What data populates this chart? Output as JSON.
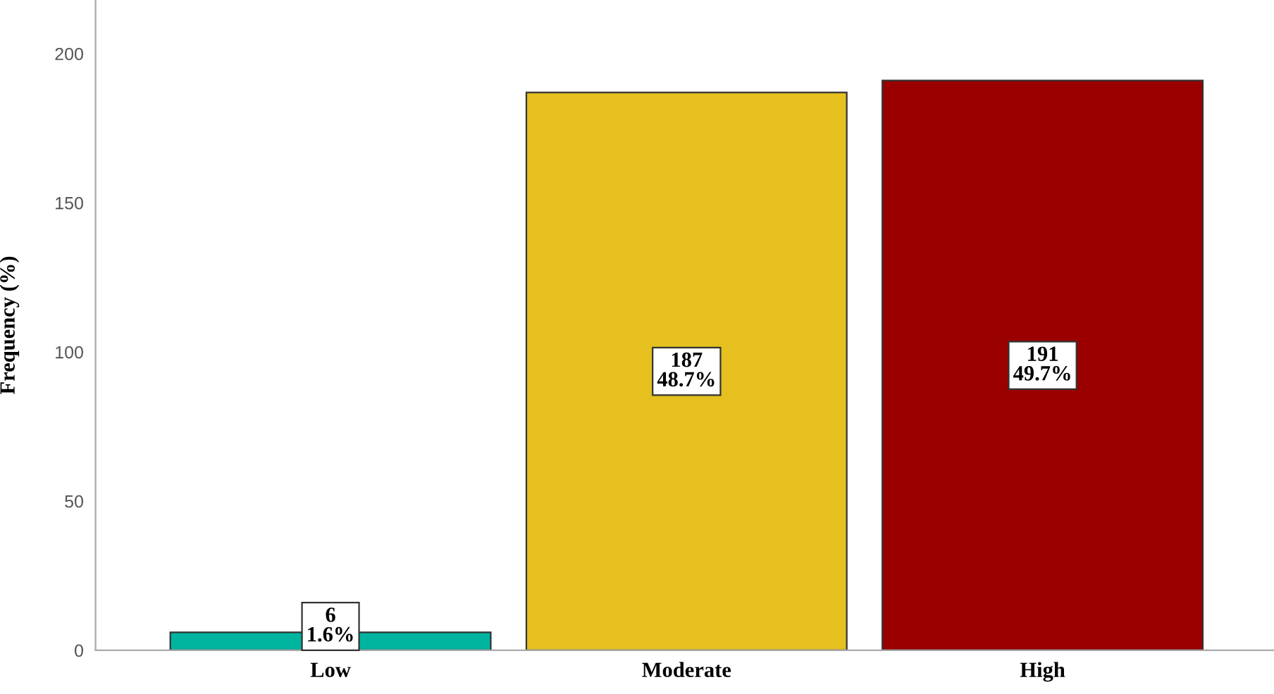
{
  "chart_data": {
    "type": "bar",
    "ylabel": "Frequency (%)",
    "categories": [
      "Low",
      "Moderate",
      "High"
    ],
    "values": [
      6,
      187,
      191
    ],
    "colors": [
      "#00b5a0",
      "#e5c01f",
      "#9a0000"
    ],
    "value_labels": [
      "6\n1.6%",
      "187\n48.7%",
      "191\n49.7%"
    ],
    "ylim": [
      0,
      218
    ],
    "yticks": [
      0,
      50,
      100,
      150,
      200
    ],
    "grid": false,
    "legend": false
  }
}
